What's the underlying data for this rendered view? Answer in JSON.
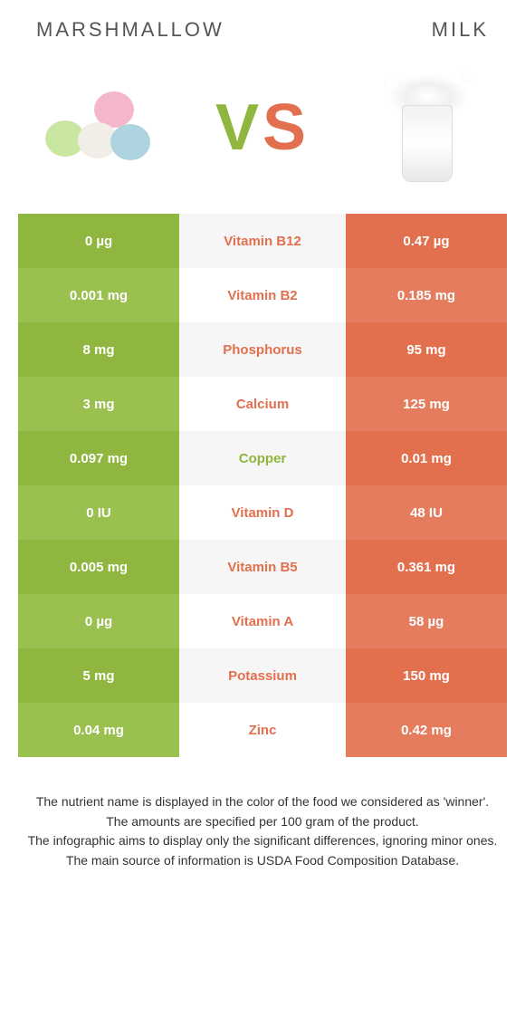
{
  "colors": {
    "left_base": "#8fb63e",
    "left_alt": "#9ac04f",
    "right_base": "#e2704f",
    "right_alt": "#e57c5d",
    "mid_alt_bg": "#f6f6f6",
    "text_white": "#ffffff",
    "header_text": "#555555",
    "note_text": "#333333"
  },
  "header": {
    "left_title": "Marshmallow",
    "right_title": "Milk"
  },
  "vs": {
    "v": "V",
    "s": "S",
    "v_color": "#8fb63e",
    "s_color": "#e2704f"
  },
  "rows": [
    {
      "left": "0 µg",
      "name": "Vitamin B12",
      "right": "0.47 µg",
      "winner": "right"
    },
    {
      "left": "0.001 mg",
      "name": "Vitamin B2",
      "right": "0.185 mg",
      "winner": "right"
    },
    {
      "left": "8 mg",
      "name": "Phosphorus",
      "right": "95 mg",
      "winner": "right"
    },
    {
      "left": "3 mg",
      "name": "Calcium",
      "right": "125 mg",
      "winner": "right"
    },
    {
      "left": "0.097 mg",
      "name": "Copper",
      "right": "0.01 mg",
      "winner": "left"
    },
    {
      "left": "0 IU",
      "name": "Vitamin D",
      "right": "48 IU",
      "winner": "right"
    },
    {
      "left": "0.005 mg",
      "name": "Vitamin B5",
      "right": "0.361 mg",
      "winner": "right"
    },
    {
      "left": "0 µg",
      "name": "Vitamin A",
      "right": "58 µg",
      "winner": "right"
    },
    {
      "left": "5 mg",
      "name": "Potassium",
      "right": "150 mg",
      "winner": "right"
    },
    {
      "left": "0.04 mg",
      "name": "Zinc",
      "right": "0.42 mg",
      "winner": "right"
    }
  ],
  "notes": {
    "line1": "The nutrient name is displayed in the color of the food we considered as 'winner'.",
    "line2": "The amounts are specified per 100 gram of the product.",
    "line3": "The infographic aims to display only the significant differences, ignoring minor ones.",
    "line4": "The main source of information is USDA Food Composition Database."
  }
}
